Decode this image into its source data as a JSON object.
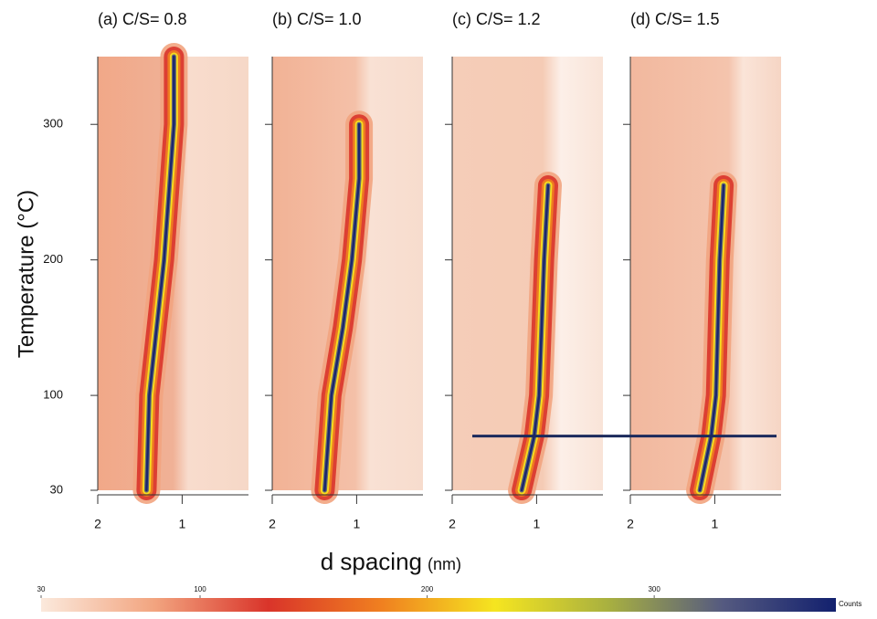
{
  "figure": {
    "y_label": "Temperature (°C)",
    "x_label": "d spacing",
    "x_unit": "(nm)"
  },
  "chart_data": [
    {
      "type": "line",
      "title": "(a) C/S= 0.8",
      "xscale": "log",
      "xlim": [
        2,
        0.58
      ],
      "xticks": [
        2,
        1
      ],
      "ylim": [
        30,
        350
      ],
      "yticks": [
        30,
        100,
        200,
        300
      ],
      "ytick_labels": true,
      "x": [
        1.34,
        1.31,
        1.16,
        1.07,
        1.07
      ],
      "values": [
        30,
        100,
        200,
        300,
        350
      ]
    },
    {
      "type": "line",
      "title": "(b) C/S= 1.0",
      "xscale": "log",
      "xlim": [
        2,
        0.58
      ],
      "xticks": [
        2,
        1
      ],
      "ylim": [
        30,
        350
      ],
      "yticks": [
        30,
        100,
        200,
        300
      ],
      "ytick_labels": false,
      "x": [
        1.3,
        1.23,
        1.12,
        1.04,
        0.98,
        0.98
      ],
      "values": [
        30,
        100,
        150,
        200,
        260,
        300
      ]
    },
    {
      "type": "line",
      "title": "(c) C/S= 1.2",
      "xscale": "log",
      "xlim": [
        2,
        0.58
      ],
      "xticks": [
        2,
        1
      ],
      "ylim": [
        30,
        350
      ],
      "yticks": [
        30,
        100,
        200,
        300
      ],
      "ytick_labels": false,
      "x": [
        1.13,
        1.02,
        0.98,
        0.94,
        0.91
      ],
      "values": [
        30,
        70,
        100,
        200,
        255
      ]
    },
    {
      "type": "line",
      "title": "(d) C/S= 1.5",
      "xscale": "log",
      "xlim": [
        2,
        0.58
      ],
      "xticks": [
        2,
        1
      ],
      "ylim": [
        30,
        350
      ],
      "yticks": [
        30,
        100,
        200,
        300
      ],
      "ytick_labels": false,
      "x": [
        1.13,
        1.03,
        0.99,
        0.96,
        0.93
      ],
      "values": [
        30,
        70,
        100,
        200,
        255
      ]
    }
  ],
  "reference_line": {
    "temperature": 70,
    "color": "#1b2a5c"
  },
  "colorbar": {
    "label": "Counts",
    "lim": [
      30,
      380
    ],
    "ticks": [
      30,
      100,
      200,
      300
    ],
    "colors": [
      "#fbe9dc",
      "#f2a47f",
      "#d9342a",
      "#f08020",
      "#f5e520",
      "#a8b040",
      "#555a80",
      "#12206e"
    ]
  }
}
